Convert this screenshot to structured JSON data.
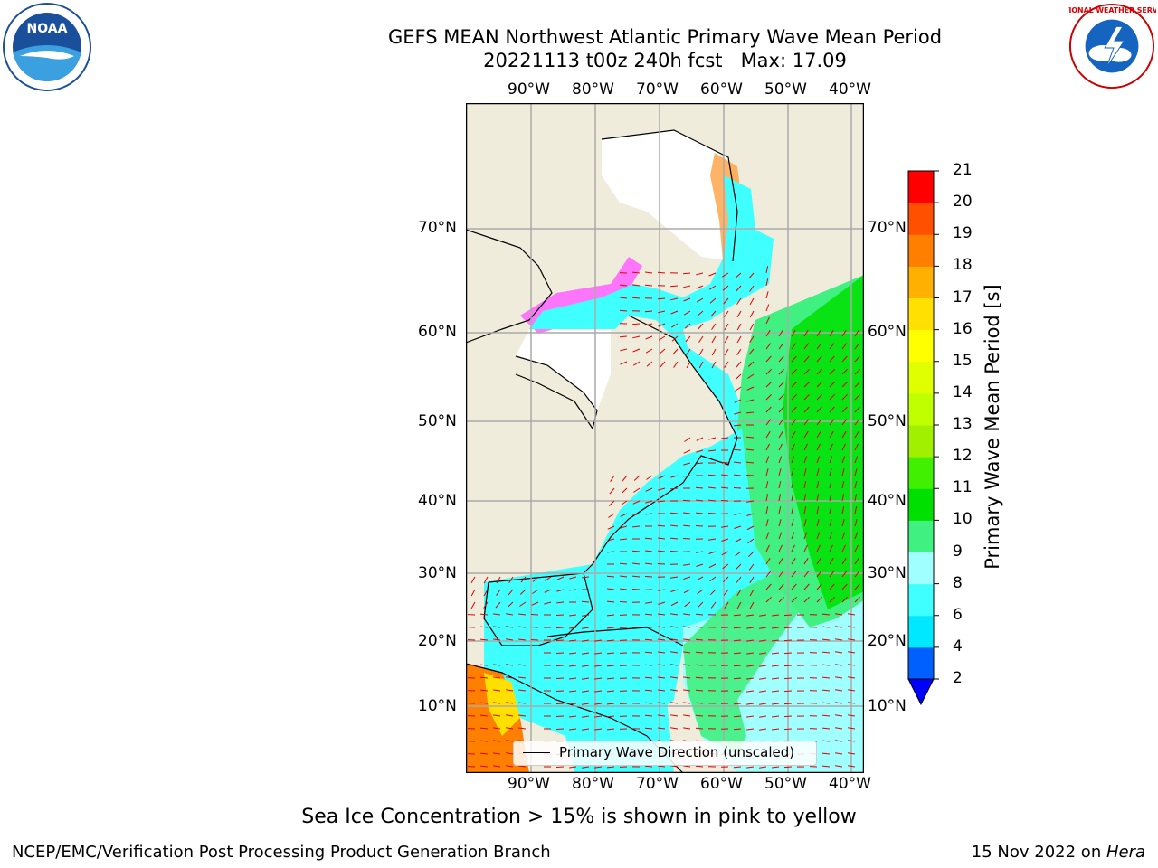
{
  "title": {
    "line1": "GEFS MEAN Northwest Atlantic Primary Wave Mean Period",
    "line2": "20221113 t00z 240h fcst   Max: 17.09"
  },
  "map": {
    "lon_labels": [
      "90°W",
      "80°W",
      "70°W",
      "60°W",
      "50°W",
      "40°W"
    ],
    "lat_labels": [
      "70°N",
      "60°N",
      "50°N",
      "40°N",
      "30°N",
      "20°N",
      "10°N"
    ],
    "legend_label": "Primary Wave Direction (unscaled)"
  },
  "colorbar": {
    "label": "Primary Wave Mean Period [s]",
    "ticks": [
      "2",
      "4",
      "6",
      "8",
      "9",
      "10",
      "11",
      "12",
      "13",
      "14",
      "15",
      "16",
      "17",
      "18",
      "19",
      "20",
      "21"
    ],
    "colors": [
      "#0060ff",
      "#00e8ff",
      "#40ffff",
      "#a0ffff",
      "#40f080",
      "#00e000",
      "#40f000",
      "#a0f000",
      "#c0ff00",
      "#e0ff00",
      "#ffff00",
      "#ffe000",
      "#ffb000",
      "#ff8000",
      "#ff5000",
      "#ff3000",
      "#ff0000"
    ],
    "under_color": "#0000ff"
  },
  "subtitle": "Sea Ice Concentration > 15% is shown in pink to yellow",
  "footer": {
    "left": "NCEP/EMC/Verification Post Processing Product Generation Branch",
    "right_date": "15 Nov 2022 on ",
    "right_host": "Hera"
  },
  "logos": {
    "noaa_text": "NOAA",
    "nws_text": "NATIONAL WEATHER SERVICE"
  }
}
